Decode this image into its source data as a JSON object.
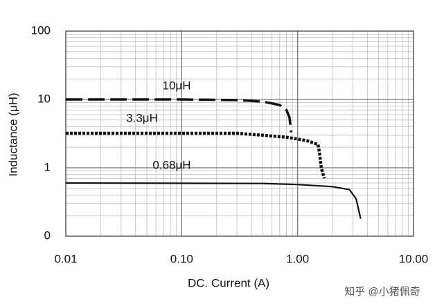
{
  "chart_data": {
    "type": "line",
    "xlabel": "DC. Current (A)",
    "ylabel": "Inductance (μH)",
    "watermark": "知乎 @小猪佩奇",
    "xscale": "log",
    "yscale": "log",
    "grid": true,
    "minor_grid": true,
    "xlim": [
      0.01,
      10
    ],
    "ylim": [
      0.1,
      100
    ],
    "xticks": [
      0.01,
      {
        "value": 0.1,
        "label": "0.10"
      },
      {
        "value": 1,
        "label": "1.00"
      },
      {
        "value": 10,
        "label": "10.00"
      }
    ],
    "yticks": [
      {
        "value": 0.1,
        "label": "0"
      },
      1,
      10,
      100
    ],
    "series": [
      {
        "name": "10μH",
        "color": "#111111",
        "style": "dashed",
        "x": [
          0.01,
          0.1,
          0.3,
          0.5,
          0.7,
          0.8,
          0.85,
          0.88
        ],
        "values": [
          10,
          10,
          9.8,
          9.3,
          8.3,
          7.0,
          5.5,
          3.3
        ]
      },
      {
        "name": "3.3μH",
        "color": "#111111",
        "style": "dotted",
        "x": [
          0.01,
          0.3,
          0.5,
          0.8,
          1.2,
          1.5,
          1.55,
          1.6,
          1.7
        ],
        "values": [
          3.2,
          3.2,
          3.0,
          2.8,
          2.5,
          2.2,
          1.6,
          1.0,
          0.7
        ]
      },
      {
        "name": "0.68μH",
        "color": "#111111",
        "style": "solid",
        "x": [
          0.01,
          0.5,
          1,
          2,
          2.8,
          3.2,
          3.5
        ],
        "values": [
          0.6,
          0.59,
          0.57,
          0.53,
          0.48,
          0.35,
          0.18
        ]
      }
    ]
  }
}
